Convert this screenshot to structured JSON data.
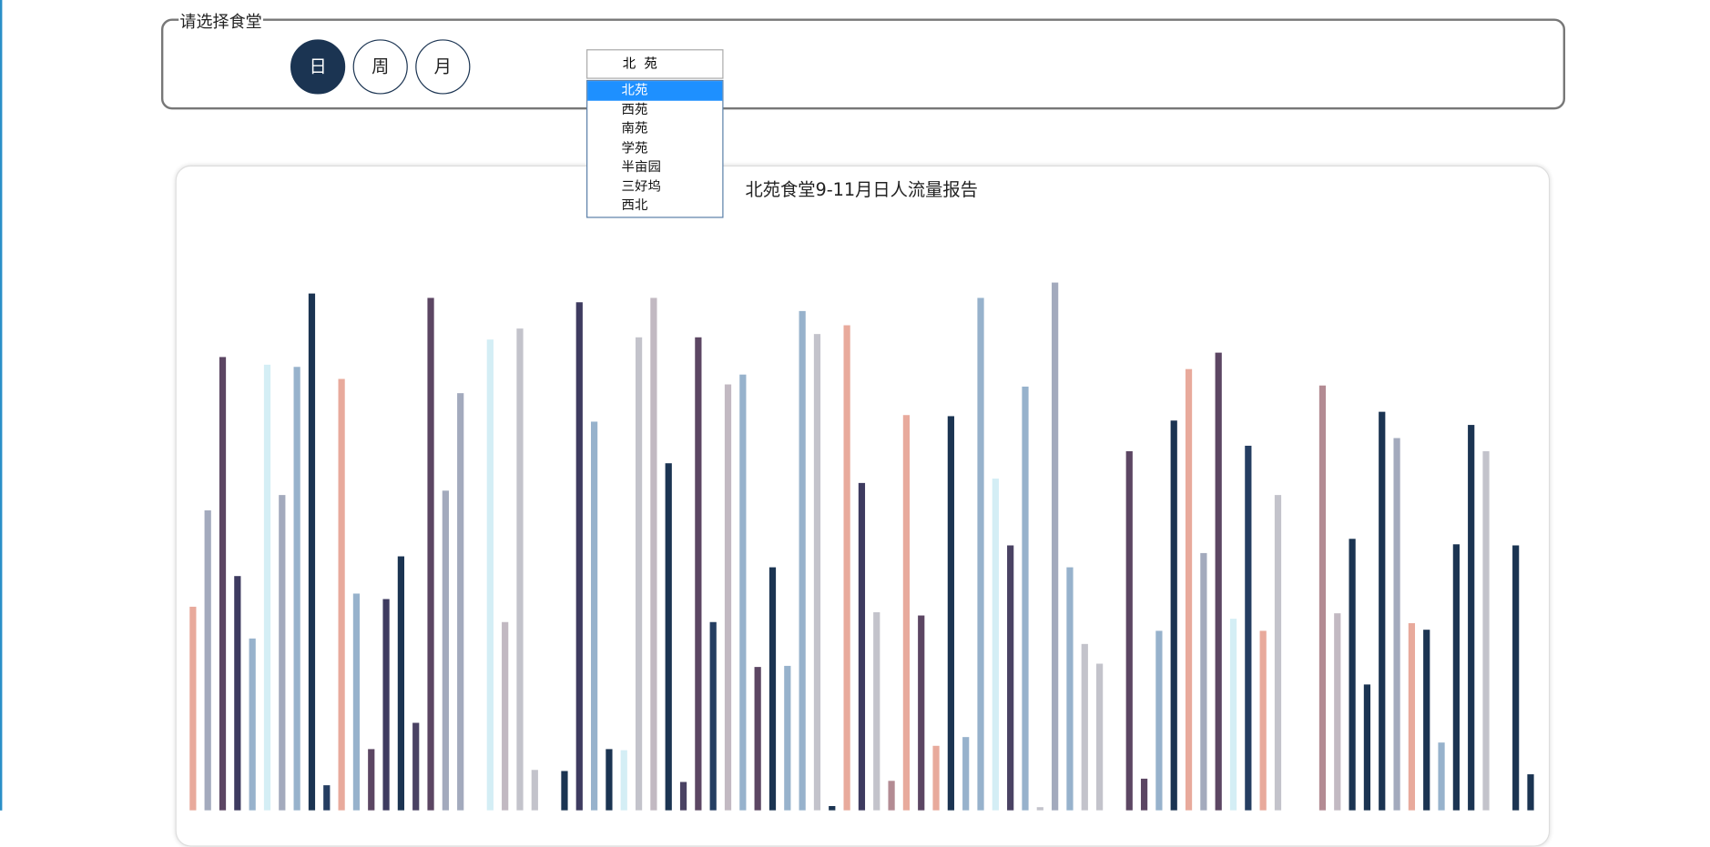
{
  "panel": {
    "legend": "请选择食堂",
    "buttons": [
      "日",
      "周",
      "月"
    ],
    "select": "北  苑",
    "options": [
      "北苑",
      "西苑",
      "南苑",
      "学苑",
      "半亩园",
      "三好坞",
      "西北"
    ]
  },
  "chart_data": {
    "type": "bar",
    "title": "北苑食堂9-11月日人流量报告",
    "values": [
      186,
      274,
      414,
      214,
      157,
      407,
      288,
      405,
      472,
      23,
      394,
      198,
      56,
      193,
      232,
      80,
      468,
      292,
      381,
      0,
      430,
      172,
      440,
      37,
      0,
      36,
      464,
      355,
      56,
      55,
      432,
      468,
      317,
      26,
      432,
      172,
      389,
      398,
      131,
      222,
      132,
      456,
      435,
      4,
      443,
      299,
      181,
      27,
      361,
      178,
      59,
      360,
      67,
      468,
      303,
      242,
      387,
      3,
      482,
      222,
      152,
      134,
      0,
      328,
      29,
      164,
      356,
      403,
      235,
      418,
      175,
      333,
      164,
      288,
      0,
      0,
      388,
      180,
      248,
      115,
      364,
      340,
      171,
      165,
      62,
      243,
      352,
      328,
      0,
      242,
      33
    ],
    "colors": [
      "#e8aa9c",
      "#a3aabd",
      "#5c4663",
      "#3e3b60",
      "#97b2cc",
      "#d4eef5",
      "#a3aabd",
      "#97b2cc",
      "#1b3452",
      "#253e62",
      "#e8aa9c",
      "#97b2cc",
      "#5c4663",
      "#3e3b60",
      "#1b3452",
      "#4a4263",
      "#5c4663",
      "#a3aabd",
      "#a3aabd",
      "#97b2cc",
      "#d4eef5",
      "#c2b9c2",
      "#c3c3cb",
      "#c3c3cb",
      "#3e3b60",
      "#1b3452",
      "#3e3b60",
      "#97b2cc",
      "#1b3452",
      "#d4eef5",
      "#c3c3cb",
      "#c2b9c2",
      "#1b3452",
      "#4a4263",
      "#5c4663",
      "#253e62",
      "#c2b9c2",
      "#97b2cc",
      "#5c4663",
      "#1b3452",
      "#97b2cc",
      "#97b2cc",
      "#c3c3cb",
      "#1b3452",
      "#e8aa9c",
      "#3e3b60",
      "#c3c3cb",
      "#b38b93",
      "#e8aa9c",
      "#5c4663",
      "#e8aa9c",
      "#1b3452",
      "#97b2cc",
      "#97b2cc",
      "#d4eef5",
      "#4a4263",
      "#97b2cc",
      "#c3c3cb",
      "#a3aabd",
      "#97b2cc",
      "#c3c3cb",
      "#c3c3cb",
      "#3e3b60",
      "#5c4663",
      "#5c4663",
      "#97b2cc",
      "#1b3452",
      "#e8aa9c",
      "#a3aabd",
      "#5c4663",
      "#d4eef5",
      "#253e62",
      "#e8aa9c",
      "#c3c3cb",
      "#c3c3cb",
      "#c2b9c2",
      "#b38b93",
      "#c2b9c2",
      "#1b3452",
      "#1b3452",
      "#1b3452",
      "#a3aabd",
      "#e8aa9c",
      "#1b3452",
      "#97b2cc",
      "#1b3452",
      "#1b3452",
      "#c3c3cb",
      "#b38b93",
      "#1b3452",
      "#1b3452"
    ]
  }
}
